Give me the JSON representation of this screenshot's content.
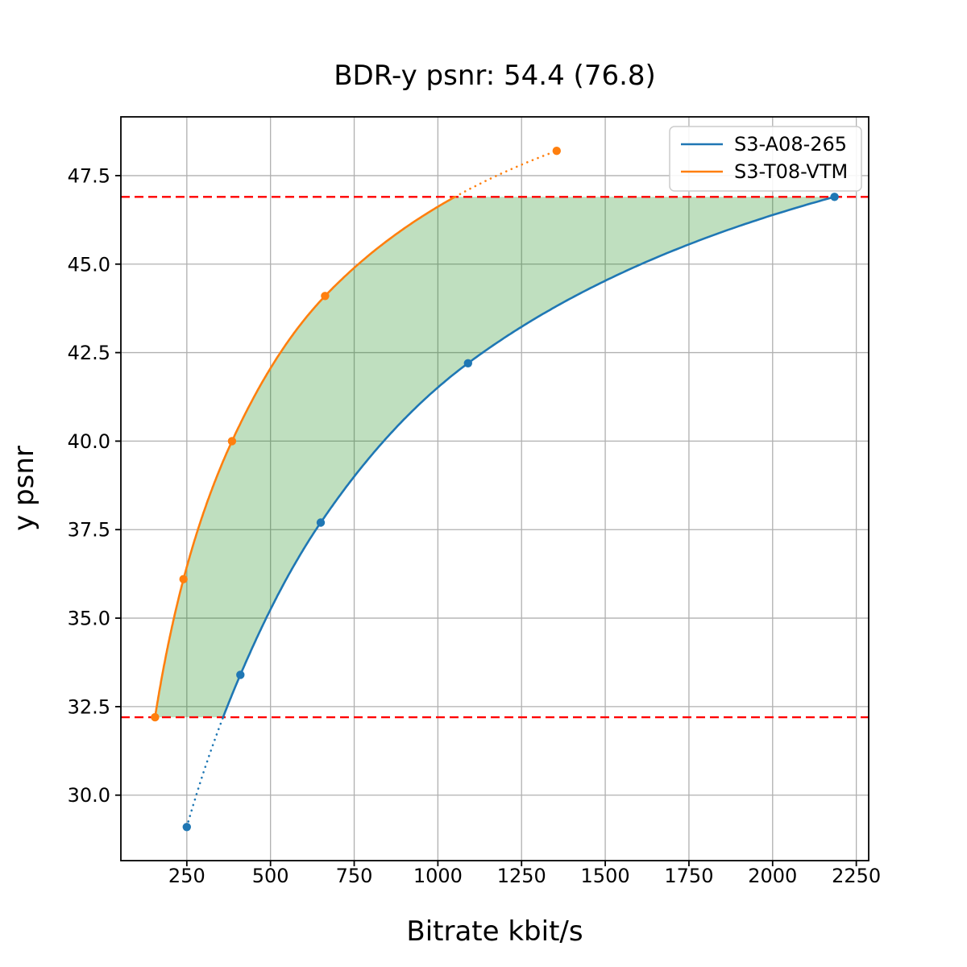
{
  "chart_data": {
    "type": "line",
    "title": "BDR-y psnr: 54.4 (76.8)",
    "xlabel": "Bitrate kbit/s",
    "ylabel": "y psnr",
    "xlim": [
      53,
      2287
    ],
    "ylim": [
      28.15,
      49.16
    ],
    "xtick_values": [
      250,
      500,
      750,
      1000,
      1250,
      1500,
      1750,
      2000,
      2250
    ],
    "xtick_labels": [
      "250",
      "500",
      "750",
      "1000",
      "1250",
      "1500",
      "1750",
      "2000",
      "2250"
    ],
    "ytick_values": [
      30.0,
      32.5,
      35.0,
      37.5,
      40.0,
      42.5,
      45.0,
      47.5
    ],
    "ytick_labels": [
      "30.0",
      "32.5",
      "35.0",
      "37.5",
      "40.0",
      "42.5",
      "45.0",
      "47.5"
    ],
    "grid": true,
    "grid_color": "#b0b0b0",
    "curve_interpolation": "pchip-log-x",
    "series": [
      {
        "name": "S3-A08-265",
        "color": "#1f77b4",
        "marker": "circle",
        "points": [
          [
            250,
            29.1
          ],
          [
            410,
            33.4
          ],
          [
            650,
            37.7
          ],
          [
            1090,
            42.2
          ],
          [
            2185,
            46.9
          ]
        ]
      },
      {
        "name": "S3-T08-VTM",
        "color": "#ff7f0e",
        "marker": "circle",
        "points": [
          [
            155,
            32.2
          ],
          [
            240,
            36.1
          ],
          [
            385,
            40.0
          ],
          [
            663,
            44.1
          ],
          [
            1355,
            48.2
          ]
        ]
      }
    ],
    "overlap_y_range": [
      32.2,
      46.9
    ],
    "hlines": [
      {
        "y": 46.9,
        "color": "#ff0000",
        "style": "dashed"
      },
      {
        "y": 32.2,
        "color": "#ff0000",
        "style": "dashed"
      }
    ],
    "fill_between": {
      "color": "#008000",
      "opacity": 0.25
    },
    "legend": {
      "position": "upper right"
    }
  }
}
